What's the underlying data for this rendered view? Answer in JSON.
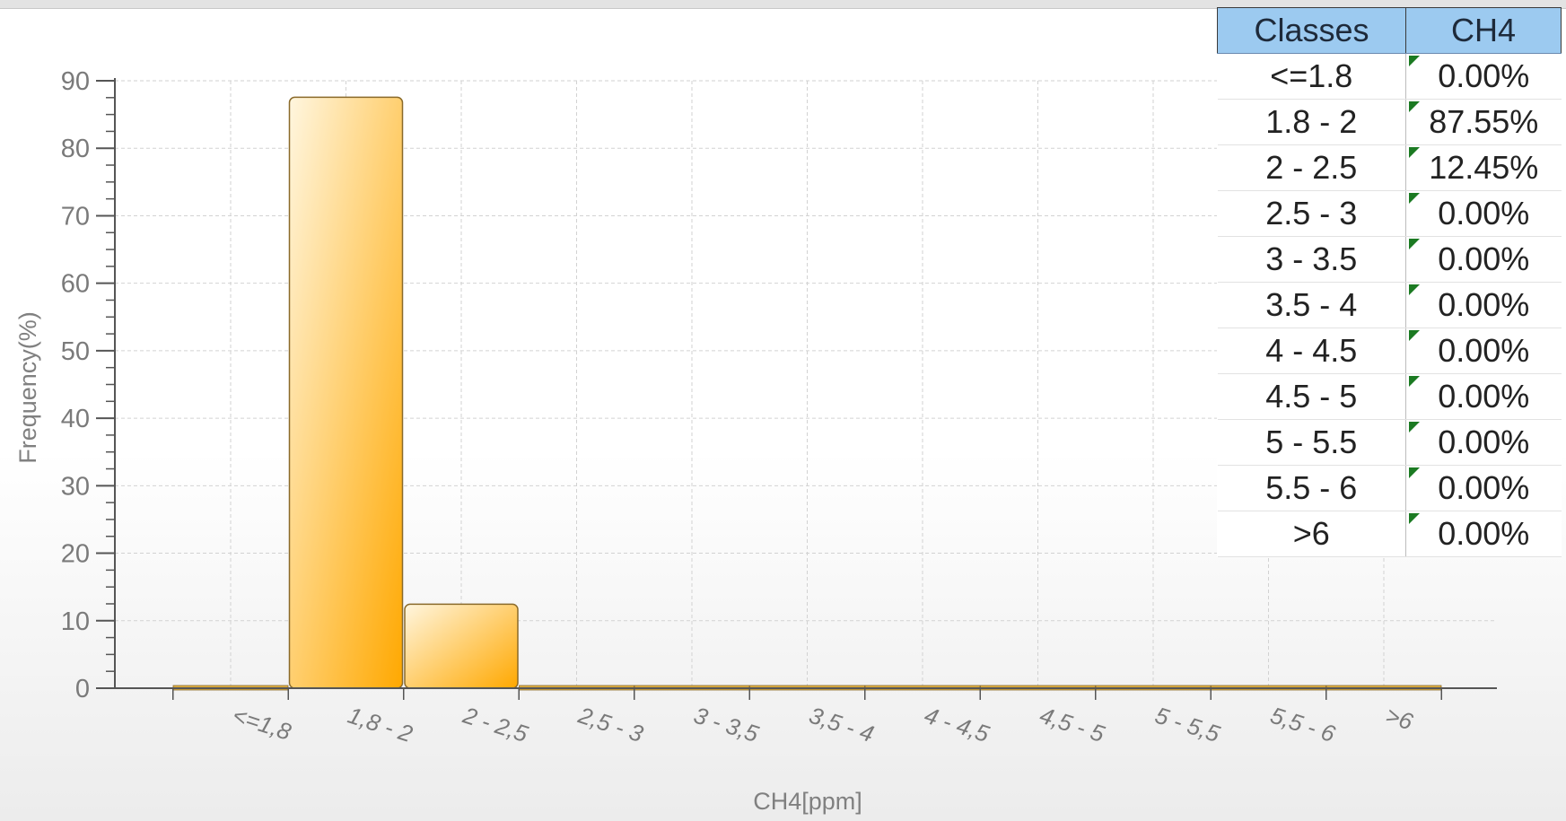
{
  "chart_data": {
    "type": "bar",
    "xlabel": "CH4[ppm]",
    "ylabel": "Frequency(%)",
    "ylim": [
      0,
      90
    ],
    "yticks": [
      "0",
      "10",
      "20",
      "30",
      "40",
      "50",
      "60",
      "70",
      "80",
      "90"
    ],
    "categories": [
      "<=1.8",
      "1.8 - 2",
      "2 - 2.5",
      "2.5 - 3",
      "3 - 3.5",
      "3.5 - 4",
      "4 - 4.5",
      "4.5 - 5",
      "5 - 5.5",
      "5.5 - 6",
      ">6"
    ],
    "series": [
      {
        "values": [
          0,
          87.55,
          12.45,
          0,
          0,
          0,
          0,
          0,
          0,
          0,
          0
        ]
      }
    ],
    "grid": true,
    "bar_color_top": "#fff6df",
    "bar_color_bottom": "#ffa800",
    "bar_border": "#8a6a2a"
  },
  "table": {
    "headers": [
      "Classes",
      "CH4"
    ],
    "rows": [
      [
        "<=1.8",
        "0.00%"
      ],
      [
        "1.8 - 2",
        "87.55%"
      ],
      [
        "2 - 2.5",
        "12.45%"
      ],
      [
        "2.5 - 3",
        "0.00%"
      ],
      [
        "3 - 3.5",
        "0.00%"
      ],
      [
        "3.5 - 4",
        "0.00%"
      ],
      [
        "4 - 4.5",
        "0.00%"
      ],
      [
        "4.5 - 5",
        "0.00%"
      ],
      [
        "5 - 5.5",
        "0.00%"
      ],
      [
        "5.5 - 6",
        "0.00%"
      ],
      [
        ">6",
        "0.00%"
      ]
    ]
  }
}
